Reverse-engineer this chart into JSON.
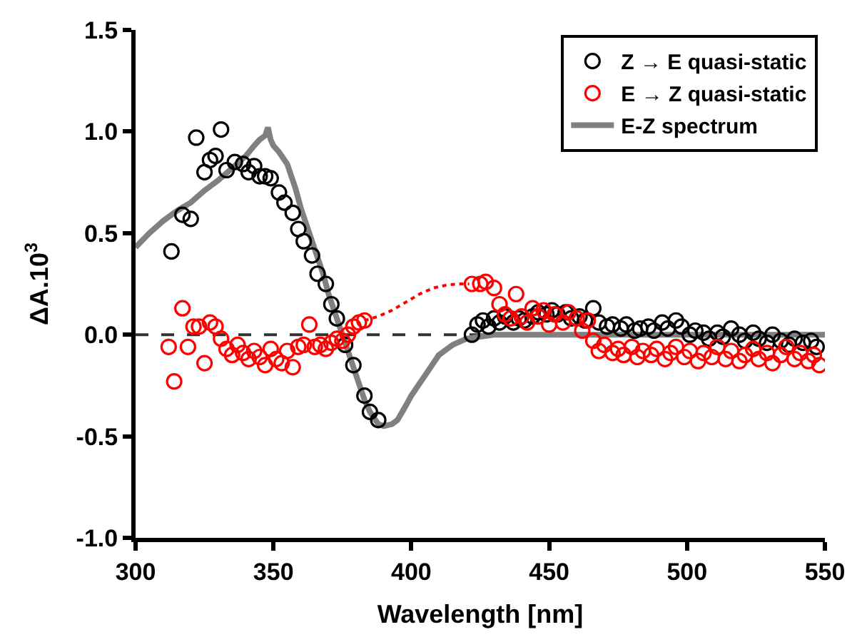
{
  "chart_data": {
    "type": "scatter",
    "xlabel": "Wavelength [nm]",
    "ylabel": "ΔA.10$^{3}$",
    "xlim": [
      300,
      550
    ],
    "xticks": [
      300,
      350,
      400,
      450,
      500,
      550
    ],
    "ylim": [
      -1.0,
      1.5
    ],
    "yticks": [
      {
        "value": -1.0,
        "label": "-1.0"
      },
      {
        "value": -0.5,
        "label": "-0.5"
      },
      {
        "value": 0,
        "label": "0.0"
      },
      {
        "value": 0.5,
        "label": "0.5"
      },
      {
        "value": 1.0,
        "label": "1.0"
      },
      {
        "value": 1.5,
        "label": "1.5"
      }
    ],
    "grid": false,
    "legend": "top right",
    "ref_lines": [
      {
        "axis": "y",
        "value": 0,
        "color": "#333333",
        "line_style": "dashed"
      }
    ],
    "series": [
      {
        "name": "Z → E quasi-static",
        "marker": "circle",
        "color": "#000000",
        "x": [
          313,
          317,
          320,
          322,
          325,
          327,
          329,
          331,
          333,
          336,
          339,
          341,
          343,
          345,
          347,
          349,
          352,
          354,
          357,
          359,
          361,
          364,
          366,
          369,
          371,
          373,
          376,
          379,
          383,
          385,
          388,
          422,
          424,
          426,
          428,
          430,
          432,
          434,
          437,
          439,
          441,
          444,
          446,
          449,
          451,
          453,
          456,
          458,
          461,
          463,
          466,
          468,
          471,
          473,
          476,
          478,
          481,
          483,
          486,
          488,
          491,
          493,
          496,
          498,
          501,
          503,
          506,
          508,
          511,
          513,
          516,
          519,
          521,
          524,
          526,
          529,
          531,
          534,
          537,
          539,
          542,
          545,
          547
        ],
        "values": [
          0.41,
          0.59,
          0.57,
          0.97,
          0.8,
          0.86,
          0.88,
          1.01,
          0.81,
          0.85,
          0.84,
          0.8,
          0.83,
          0.78,
          0.78,
          0.77,
          0.7,
          0.65,
          0.6,
          0.52,
          0.46,
          0.39,
          0.3,
          0.25,
          0.15,
          0.08,
          -0.05,
          -0.15,
          -0.3,
          -0.38,
          -0.42,
          0.0,
          0.05,
          0.07,
          0.04,
          0.08,
          0.06,
          0.09,
          0.06,
          0.08,
          0.07,
          0.09,
          0.11,
          0.1,
          0.12,
          0.1,
          0.11,
          0.08,
          0.09,
          0.07,
          0.13,
          0.06,
          0.04,
          0.05,
          0.03,
          0.05,
          0.02,
          0.03,
          0.04,
          0.02,
          0.06,
          0.03,
          0.07,
          0.04,
          0.0,
          0.02,
          0.01,
          -0.02,
          0.01,
          -0.01,
          0.03,
          0.0,
          -0.03,
          0.01,
          -0.02,
          -0.04,
          0.0,
          -0.03,
          -0.05,
          -0.02,
          -0.04,
          -0.03,
          -0.06
        ]
      },
      {
        "name": "E → Z quasi-static",
        "marker": "circle",
        "color": "#ff0000",
        "x": [
          312,
          314,
          317,
          319,
          321,
          323,
          325,
          327,
          329,
          331,
          333,
          335,
          337,
          339,
          341,
          343,
          345,
          347,
          349,
          351,
          353,
          355,
          357,
          359,
          361,
          363,
          365,
          367,
          369,
          371,
          373,
          375,
          377,
          379,
          381,
          383,
          422,
          425,
          427,
          430,
          432,
          434,
          436,
          438,
          440,
          442,
          444,
          446,
          448,
          450,
          452,
          455,
          457,
          460,
          462,
          464,
          466,
          468,
          470,
          473,
          475,
          477,
          480,
          482,
          484,
          487,
          489,
          492,
          494,
          496,
          499,
          501,
          504,
          506,
          509,
          511,
          514,
          516,
          519,
          521,
          524,
          526,
          529,
          531,
          534,
          536,
          539,
          541,
          544,
          546,
          548
        ],
        "values": [
          -0.06,
          -0.23,
          0.13,
          -0.06,
          0.04,
          0.04,
          -0.14,
          0.06,
          0.04,
          -0.02,
          -0.07,
          -0.1,
          -0.05,
          -0.09,
          -0.12,
          -0.08,
          -0.11,
          -0.15,
          -0.07,
          -0.12,
          -0.14,
          -0.08,
          -0.16,
          -0.06,
          -0.05,
          0.05,
          -0.06,
          -0.05,
          -0.07,
          -0.04,
          -0.02,
          -0.03,
          0.0,
          0.04,
          0.06,
          0.07,
          0.25,
          0.25,
          0.26,
          0.23,
          0.15,
          0.1,
          0.08,
          0.2,
          0.09,
          0.06,
          0.13,
          0.09,
          0.12,
          0.05,
          0.1,
          0.06,
          0.11,
          0.08,
          0.02,
          0.07,
          -0.03,
          -0.08,
          -0.05,
          -0.09,
          -0.07,
          -0.1,
          -0.06,
          -0.11,
          -0.08,
          -0.1,
          -0.07,
          -0.12,
          -0.09,
          -0.06,
          -0.11,
          -0.08,
          -0.13,
          -0.09,
          -0.11,
          -0.06,
          -0.12,
          -0.08,
          -0.13,
          -0.1,
          -0.07,
          -0.12,
          -0.09,
          -0.14,
          -0.1,
          -0.06,
          -0.12,
          -0.09,
          -0.13,
          -0.1,
          -0.15
        ]
      },
      {
        "type": "line",
        "line_style": "dotted",
        "color": "#ff0000",
        "x": [
          383,
          388,
          393,
          398,
          403,
          408,
          413,
          418,
          421
        ],
        "values": [
          0.07,
          0.09,
          0.12,
          0.16,
          0.2,
          0.23,
          0.245,
          0.25,
          0.25
        ]
      },
      {
        "name": "E-Z spectrum",
        "type": "line",
        "line_style": "solid",
        "color": "#808080",
        "x": [
          300,
          305,
          310,
          315,
          320,
          325,
          330,
          335,
          340,
          343,
          345,
          347,
          348,
          349,
          350,
          352,
          355,
          358,
          360,
          363,
          365,
          368,
          370,
          373,
          375,
          378,
          380,
          383,
          385,
          388,
          390,
          393,
          395,
          398,
          400,
          403,
          405,
          408,
          410,
          413,
          415,
          420,
          425,
          430,
          440,
          460,
          500,
          550
        ],
        "values": [
          0.43,
          0.5,
          0.56,
          0.61,
          0.65,
          0.71,
          0.76,
          0.82,
          0.88,
          0.93,
          0.96,
          0.98,
          1.02,
          0.96,
          0.93,
          0.9,
          0.84,
          0.72,
          0.62,
          0.5,
          0.42,
          0.3,
          0.2,
          0.08,
          0.0,
          -0.12,
          -0.2,
          -0.32,
          -0.38,
          -0.44,
          -0.45,
          -0.44,
          -0.42,
          -0.35,
          -0.3,
          -0.24,
          -0.2,
          -0.14,
          -0.1,
          -0.07,
          -0.05,
          -0.02,
          -0.01,
          0.0,
          0.0,
          0.0,
          0.0,
          0.0
        ]
      }
    ]
  }
}
